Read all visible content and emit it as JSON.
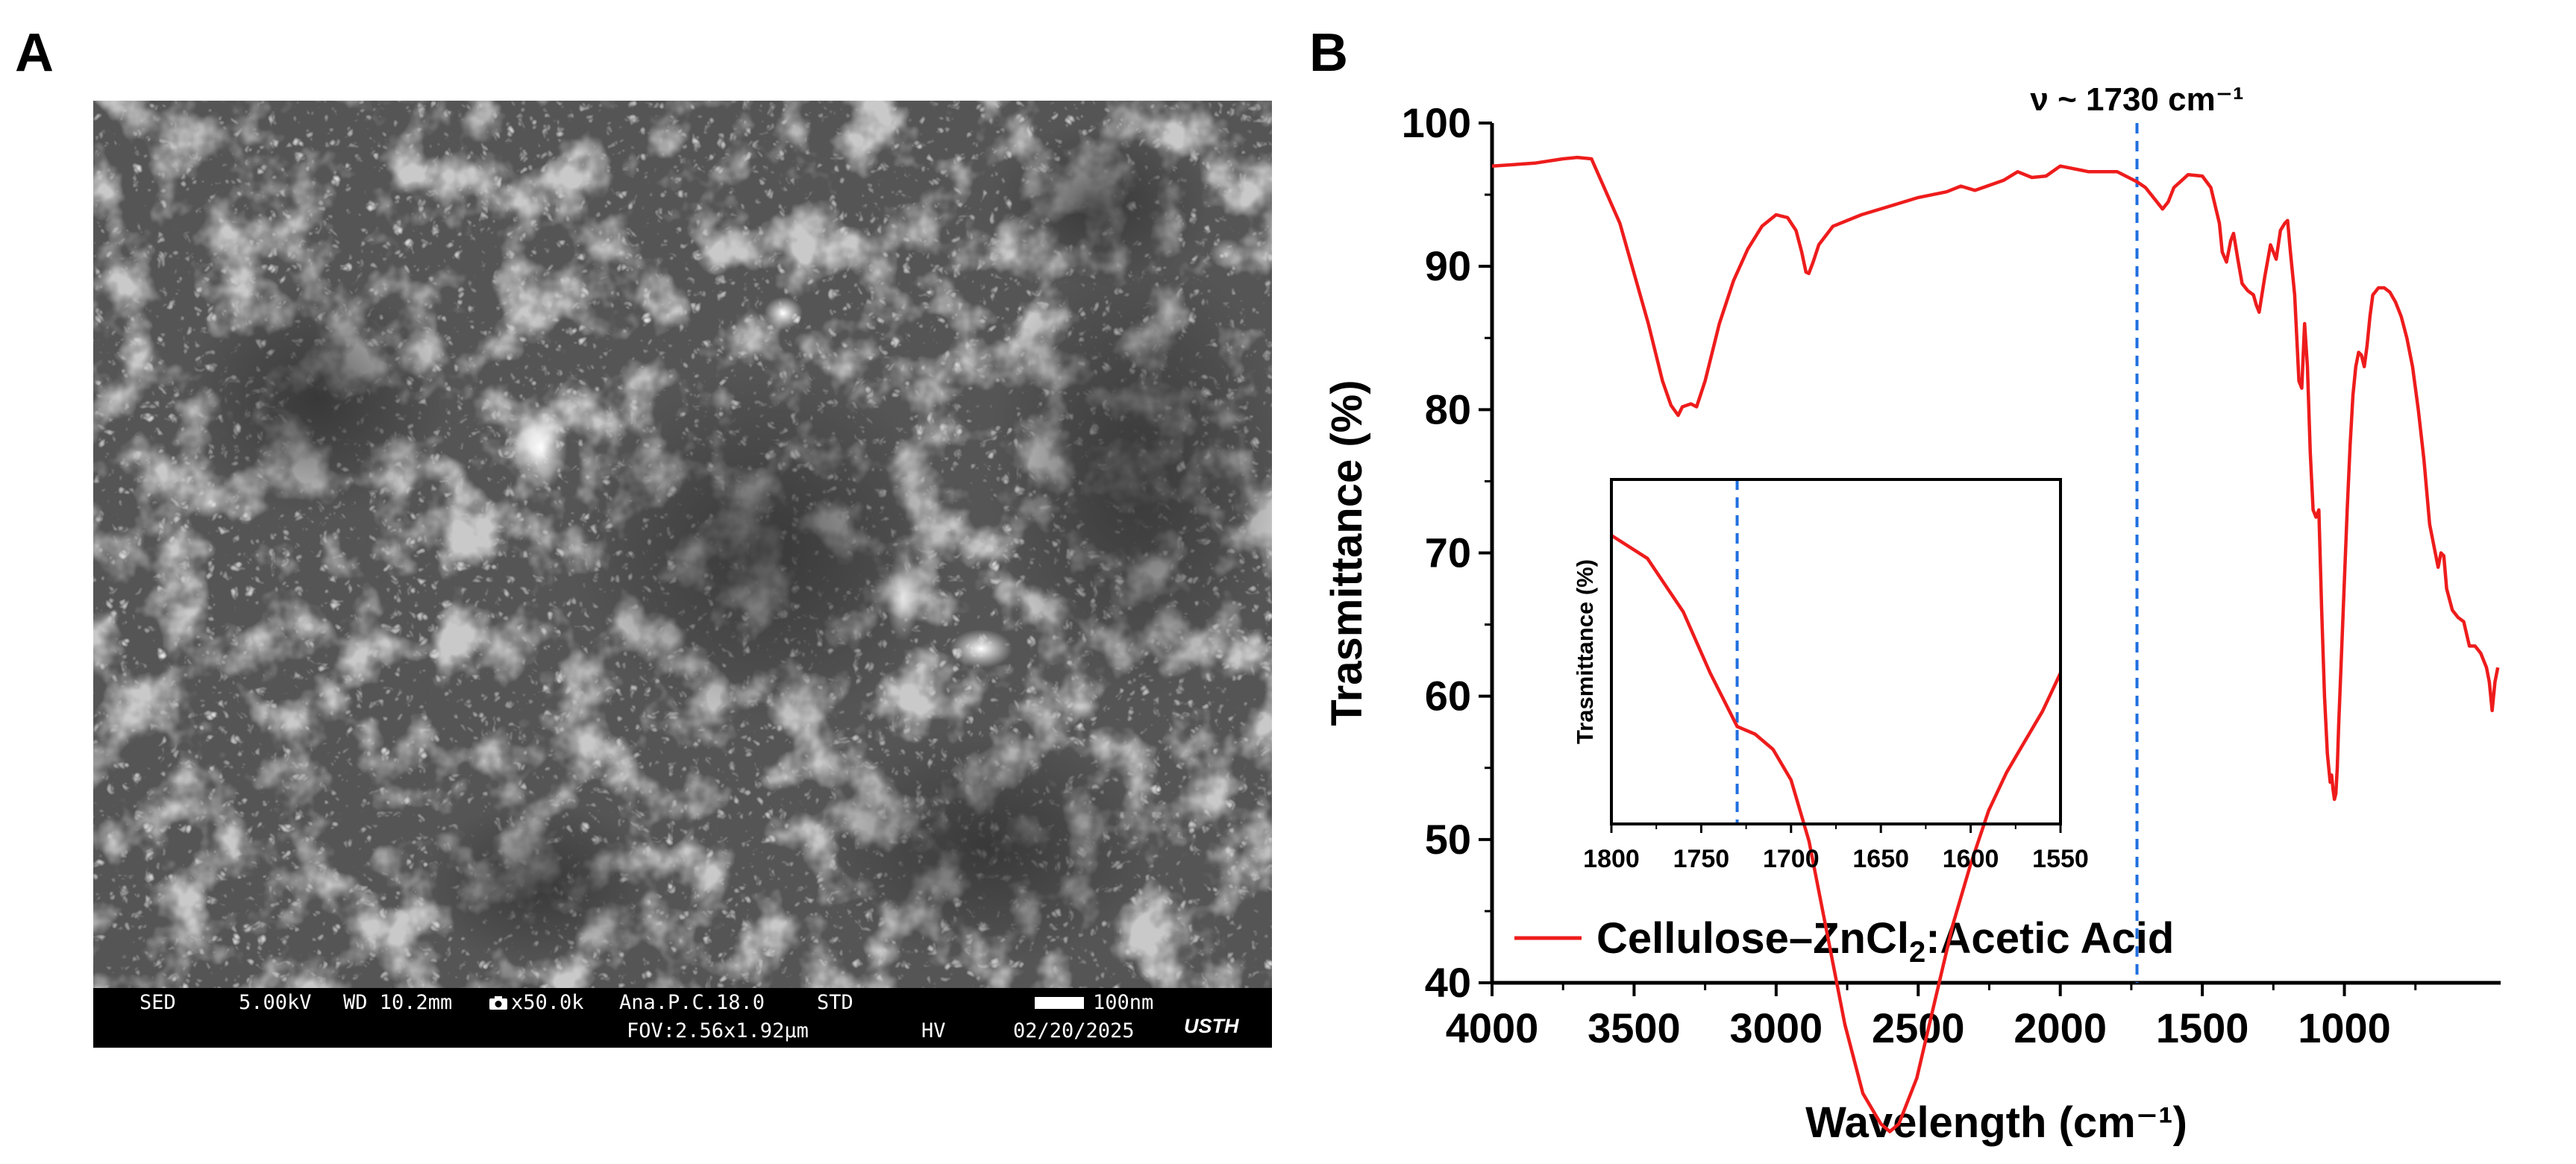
{
  "panel_labels": {
    "a": "A",
    "b": "B"
  },
  "sem": {
    "image_label": "SEM micrograph of nanofibrous cellulose network",
    "bar": {
      "mode": "SED",
      "voltage": "5.00kV",
      "wd": "WD 10.2mm",
      "mag_icon": "camera-icon",
      "mag": "x50.0k",
      "sample": "Ana.P.C.18.0",
      "std": "STD",
      "scale_label": "100nm",
      "fov": "FOV:2.56x1.92μm",
      "hv": "HV",
      "date": "02/20/2025",
      "logo": "USTH"
    }
  },
  "chart_data": [
    {
      "type": "line",
      "xlabel": "Wavelength (cm⁻¹)",
      "ylabel": "Trasmittance (%)",
      "xlim": [
        4000,
        450
      ],
      "ylim": [
        40,
        100
      ],
      "x_ticks": [
        4000,
        3500,
        3000,
        2500,
        2000,
        1500,
        1000
      ],
      "y_ticks": [
        40,
        50,
        60,
        70,
        80,
        90,
        100
      ],
      "annotation": {
        "text": "ν ~ 1730 cm⁻¹",
        "x": 1730
      },
      "legend": {
        "placement": "bottom-left",
        "name_prefix": "Cellulose–ZnCl",
        "subscript": "2",
        "name_suffix": ":Acetic Acid"
      },
      "series": [
        {
          "name": "Cellulose–ZnCl₂:Acetic Acid",
          "color": "#ee1c1c",
          "x": [
            4000,
            3850,
            3750,
            3700,
            3650,
            3550,
            3450,
            3400,
            3370,
            3345,
            3330,
            3300,
            3280,
            3250,
            3200,
            3150,
            3100,
            3050,
            3000,
            2960,
            2930,
            2910,
            2895,
            2885,
            2870,
            2850,
            2800,
            2700,
            2600,
            2500,
            2400,
            2350,
            2300,
            2200,
            2150,
            2100,
            2050,
            2000,
            1900,
            1800,
            1730,
            1700,
            1660,
            1640,
            1620,
            1600,
            1550,
            1500,
            1470,
            1440,
            1430,
            1415,
            1400,
            1390,
            1375,
            1360,
            1340,
            1320,
            1310,
            1300,
            1280,
            1260,
            1240,
            1225,
            1210,
            1200,
            1190,
            1175,
            1160,
            1150,
            1140,
            1130,
            1120,
            1110,
            1100,
            1090,
            1080,
            1070,
            1060,
            1055,
            1050,
            1045,
            1040,
            1035,
            1030,
            1025,
            1020,
            1010,
            1000,
            990,
            980,
            970,
            960,
            950,
            940,
            930,
            920,
            910,
            900,
            880,
            860,
            840,
            820,
            800,
            780,
            760,
            740,
            720,
            700,
            680,
            670,
            660,
            650,
            640,
            620,
            600,
            580,
            560,
            540,
            520,
            500,
            490,
            480,
            470,
            460
          ],
          "values": [
            97.0,
            97.2,
            97.5,
            97.6,
            97.5,
            93.0,
            86.0,
            82.0,
            80.3,
            79.6,
            80.2,
            80.4,
            80.2,
            82.0,
            86.0,
            89.0,
            91.2,
            92.8,
            93.6,
            93.4,
            92.5,
            91.0,
            89.6,
            89.5,
            90.3,
            91.5,
            92.8,
            93.6,
            94.2,
            94.8,
            95.2,
            95.6,
            95.3,
            96.0,
            96.6,
            96.2,
            96.3,
            97.0,
            96.6,
            96.6,
            95.9,
            95.5,
            94.5,
            94.0,
            94.5,
            95.5,
            96.4,
            96.3,
            95.5,
            93.0,
            91.0,
            90.3,
            91.8,
            92.3,
            90.5,
            88.8,
            88.3,
            88.0,
            87.3,
            86.8,
            89.3,
            91.5,
            90.5,
            92.5,
            93.0,
            93.2,
            91.0,
            88.0,
            82.0,
            81.5,
            86.0,
            83.0,
            77.0,
            73.0,
            72.5,
            73.0,
            66.0,
            60.0,
            56.0,
            55.0,
            54.0,
            54.5,
            53.5,
            52.8,
            53.2,
            55.0,
            58.0,
            63.0,
            68.0,
            73.0,
            77.5,
            81.0,
            83.0,
            84.0,
            83.8,
            83.0,
            84.5,
            86.5,
            88.0,
            88.5,
            88.5,
            88.2,
            87.5,
            86.5,
            85.0,
            83.0,
            80.0,
            76.5,
            72.0,
            70.0,
            69.0,
            70.0,
            69.8,
            67.5,
            66.0,
            65.5,
            65.2,
            63.5,
            63.5,
            63.0,
            62.0,
            61.0,
            59.0,
            61.0,
            62.0
          ]
        }
      ]
    },
    {
      "type": "line",
      "title": "inset",
      "xlabel": "",
      "ylabel": "Trasmittance (%)",
      "xlim": [
        1800,
        1550
      ],
      "x_ticks": [
        1800,
        1750,
        1700,
        1650,
        1600,
        1550
      ],
      "annotation": {
        "x": 1730
      },
      "series": [
        {
          "name": "Cellulose–ZnCl₂:Acetic Acid",
          "color": "#ee1c1c",
          "x": [
            1800,
            1780,
            1760,
            1745,
            1730,
            1720,
            1710,
            1700,
            1690,
            1680,
            1670,
            1660,
            1650,
            1645,
            1640,
            1630,
            1620,
            1610,
            1600,
            1590,
            1580,
            1570,
            1560,
            1550
          ],
          "values": [
            98.0,
            97.85,
            97.5,
            97.1,
            96.75,
            96.7,
            96.6,
            96.4,
            96.0,
            95.4,
            94.8,
            94.35,
            94.15,
            94.1,
            94.15,
            94.45,
            94.95,
            95.45,
            95.85,
            96.2,
            96.45,
            96.65,
            96.85,
            97.1
          ]
        }
      ]
    }
  ]
}
